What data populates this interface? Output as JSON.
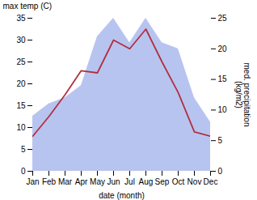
{
  "chart_data": {
    "type": "line",
    "categories": [
      "Jan",
      "Feb",
      "Mar",
      "Apr",
      "May",
      "Jun",
      "Jul",
      "Aug",
      "Sep",
      "Oct",
      "Nov",
      "Dec"
    ],
    "series": [
      {
        "type": "area",
        "color": "#b8c4f0",
        "axis": "y2",
        "values": [
          9,
          11,
          12,
          14,
          22,
          25,
          21,
          25,
          21,
          20,
          12,
          8
        ]
      },
      {
        "type": "line",
        "color": "#b03040",
        "values": [
          8,
          12.5,
          17.5,
          23,
          22.5,
          30,
          28,
          32.5,
          25,
          18,
          9,
          8
        ]
      }
    ],
    "xlabel": "date (month)",
    "ylabel": "max temp (C)",
    "y2label": "med. precipitation\n(kg/m2)",
    "ylim": [
      0,
      35
    ],
    "yticks": [
      0,
      5,
      10,
      15,
      20,
      25,
      30,
      35
    ],
    "y2lim": [
      0,
      25
    ],
    "y2ticks": [
      0,
      5,
      10,
      15,
      20,
      25
    ]
  }
}
